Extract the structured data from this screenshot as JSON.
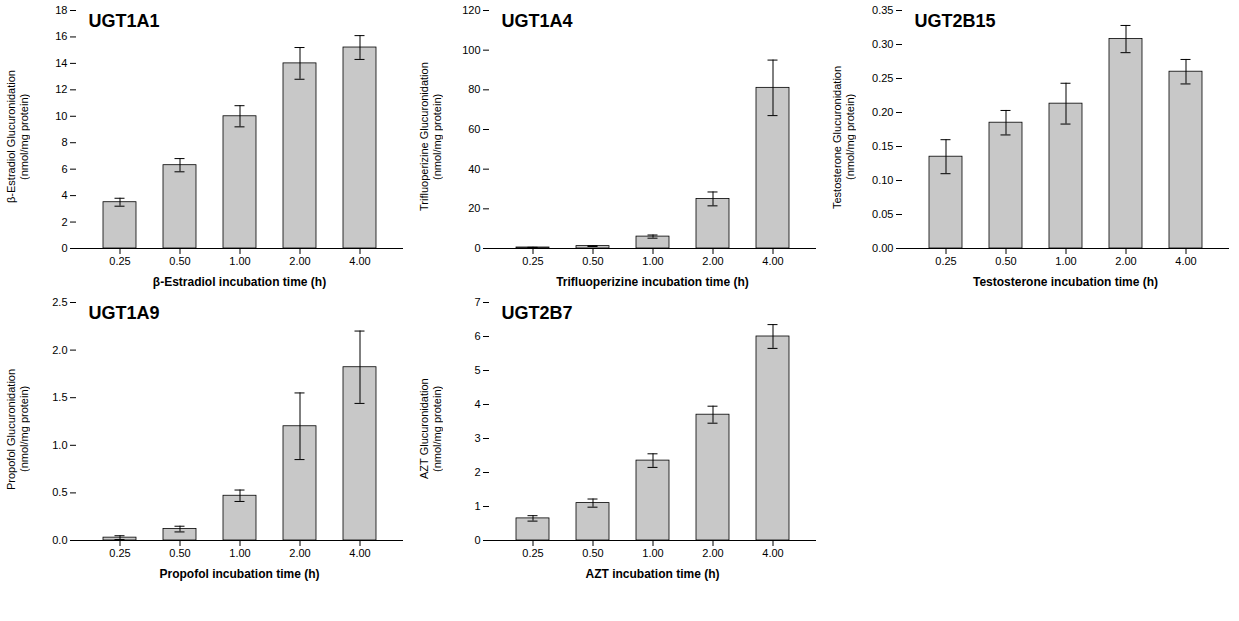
{
  "chart_data": [
    {
      "type": "bar",
      "title": "UGT1A1",
      "ylabel": "β-Estradiol Glucuronidation\n(nmol/mg protein)",
      "xlabel": "β-Estradiol incubation time (h)",
      "categories": [
        "0.25",
        "0.50",
        "1.00",
        "2.00",
        "4.00"
      ],
      "values": [
        3.5,
        6.3,
        10.0,
        14.0,
        15.2
      ],
      "errors": [
        0.3,
        0.5,
        0.8,
        1.2,
        0.9
      ],
      "color": "#c8c8c8",
      "ylim": [
        0,
        18
      ],
      "yticks": [
        0,
        2,
        4,
        6,
        8,
        10,
        12,
        14,
        16,
        18
      ],
      "grid": false
    },
    {
      "type": "bar",
      "title": "UGT1A4",
      "ylabel": "Trifluoperizine Glucuronidation\n(nmol/mg protein)",
      "xlabel": "Trifluoperizine incubation time (h)",
      "categories": [
        "0.25",
        "0.50",
        "1.00",
        "2.00",
        "4.00"
      ],
      "values": [
        0.5,
        1.2,
        6.0,
        25.0,
        81.0
      ],
      "errors": [
        0.1,
        0.2,
        0.8,
        3.5,
        14.0
      ],
      "color": "#c8c8c8",
      "ylim": [
        0,
        120
      ],
      "yticks": [
        0,
        20,
        40,
        60,
        80,
        100,
        120
      ],
      "grid": false
    },
    {
      "type": "bar",
      "title": "UGT2B15",
      "ylabel": "Testosterone Glucuronidation\n(nmol/mg protein)",
      "xlabel": "Testosterone incubation time (h)",
      "categories": [
        "0.25",
        "0.50",
        "1.00",
        "2.00",
        "4.00"
      ],
      "values": [
        0.135,
        0.185,
        0.213,
        0.308,
        0.26
      ],
      "errors": [
        0.025,
        0.018,
        0.03,
        0.02,
        0.018
      ],
      "color": "#c8c8c8",
      "ylim": [
        0,
        0.35
      ],
      "yticks": [
        {
          "value": 0.0,
          "label": "0.00"
        },
        0.05,
        {
          "value": 0.1,
          "label": "0.10"
        },
        0.15,
        {
          "value": 0.2,
          "label": "0.20"
        },
        0.25,
        {
          "value": 0.3,
          "label": "0.30"
        },
        0.35
      ],
      "grid": false
    },
    {
      "type": "bar",
      "title": "UGT1A9",
      "ylabel": "Propofol Glucuronidation\n(nmol/mg protein)",
      "xlabel": "Propofol incubation time (h)",
      "categories": [
        "0.25",
        "0.50",
        "1.00",
        "2.00",
        "4.00"
      ],
      "values": [
        0.03,
        0.12,
        0.47,
        1.2,
        1.82
      ],
      "errors": [
        0.02,
        0.03,
        0.06,
        0.35,
        0.38
      ],
      "color": "#c8c8c8",
      "ylim": [
        0,
        2.5
      ],
      "yticks": [
        {
          "value": 0.0,
          "label": "0.0"
        },
        0.5,
        {
          "value": 1.0,
          "label": "1.0"
        },
        1.5,
        {
          "value": 2.0,
          "label": "2.0"
        },
        2.5
      ],
      "grid": false
    },
    {
      "type": "bar",
      "title": "UGT2B7",
      "ylabel": "AZT Glucuronidation\n(nmol/mg protein)",
      "xlabel": "AZT incubation time (h)",
      "categories": [
        "0.25",
        "0.50",
        "1.00",
        "2.00",
        "4.00"
      ],
      "values": [
        0.65,
        1.1,
        2.35,
        3.7,
        6.0
      ],
      "errors": [
        0.08,
        0.12,
        0.2,
        0.25,
        0.35
      ],
      "color": "#c8c8c8",
      "ylim": [
        0,
        7
      ],
      "yticks": [
        0,
        1,
        2,
        3,
        4,
        5,
        6,
        7
      ],
      "grid": false
    }
  ]
}
